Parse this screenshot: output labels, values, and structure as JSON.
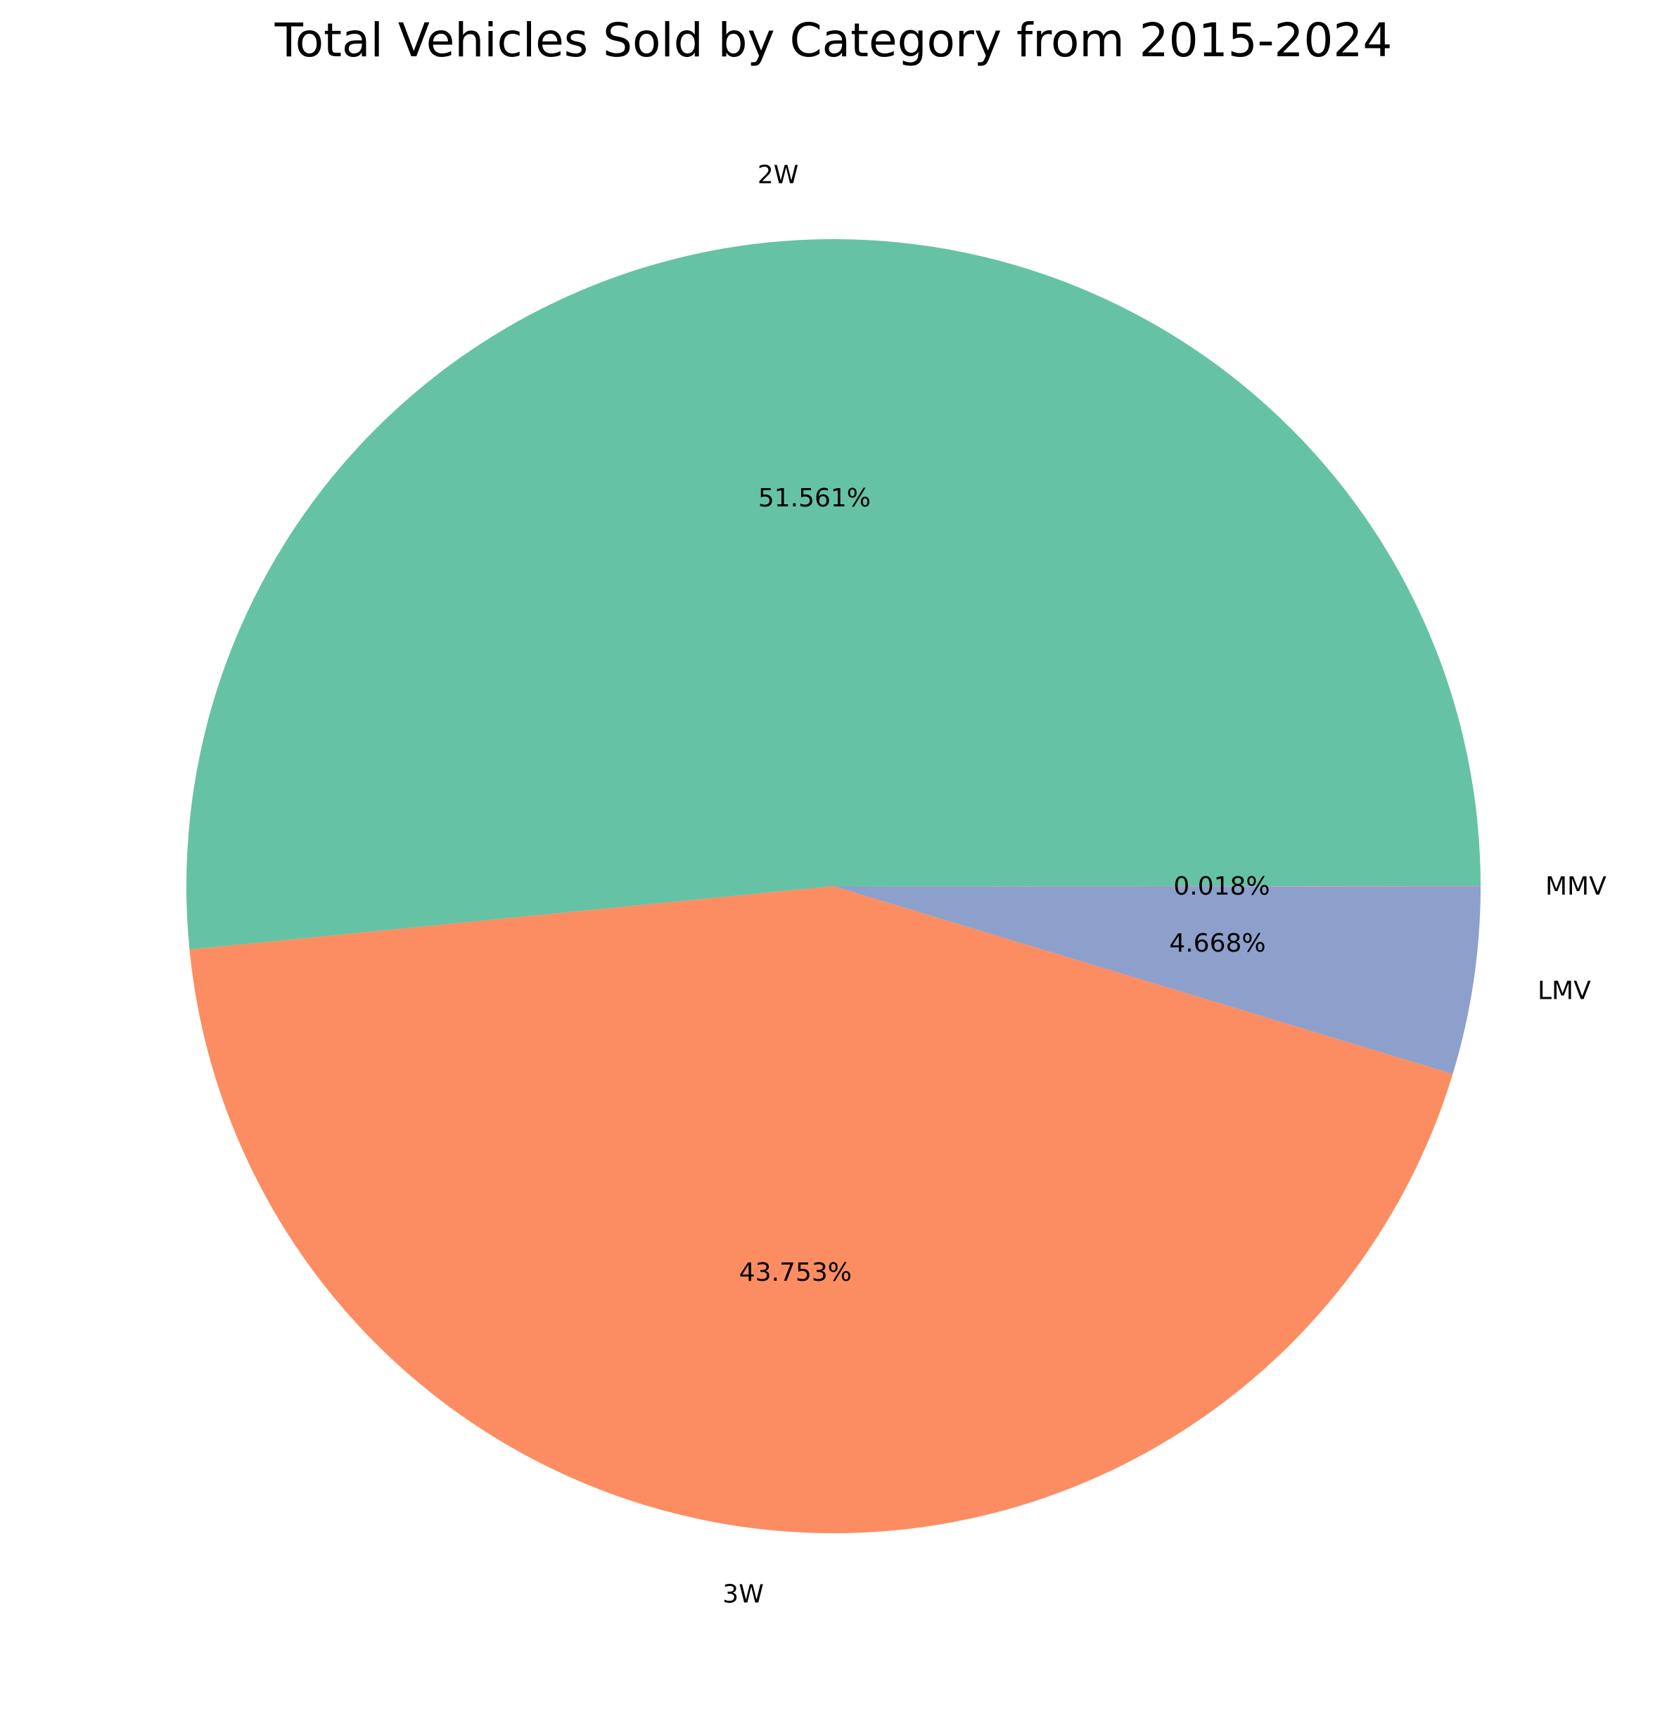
{
  "chart_data": {
    "type": "pie",
    "title": "Total Vehicles Sold by Category from 2015-2024",
    "categories": [
      "2W",
      "3W",
      "LMV",
      "MMV"
    ],
    "values": [
      51.561,
      43.753,
      4.668,
      0.018
    ],
    "pct_labels": [
      "51.561%",
      "43.753%",
      "4.668%",
      "0.018%"
    ],
    "colors": [
      "#66c2a5",
      "#fc8d62",
      "#8da0cb",
      "#e78ac3"
    ],
    "start_angle_deg": 0,
    "direction": "counterclockwise",
    "legend": "none"
  }
}
